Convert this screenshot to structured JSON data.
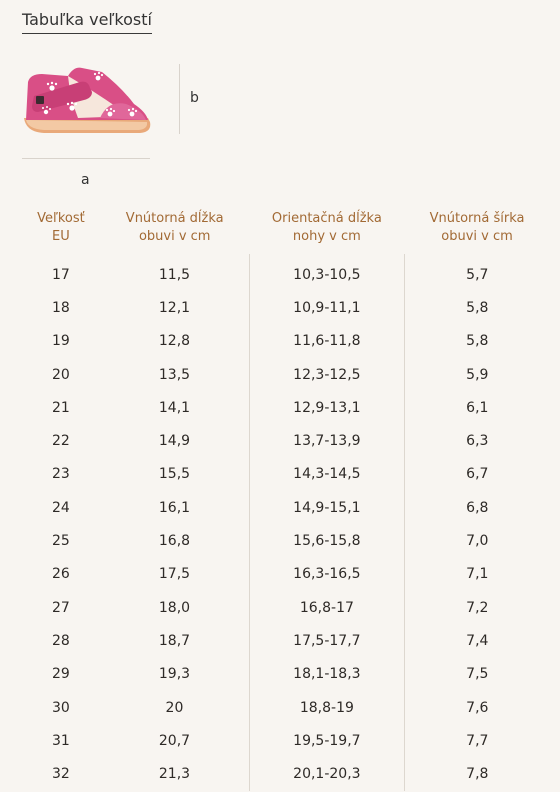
{
  "page": {
    "title": "Tabuľka veľkostí"
  },
  "figure": {
    "label_a": "a",
    "label_b": "b"
  },
  "table": {
    "headers": [
      "Veľkosť EU",
      "Vnútorná dĺžka obuvi v cm",
      "Orientačná dĺžka nohy v cm",
      "Vnútorná šírka obuvi v cm"
    ],
    "header_lines": [
      [
        "Veľkosť",
        "EU"
      ],
      [
        "Vnútorná dĺžka",
        "obuvi v cm"
      ],
      [
        "Orientačná dĺžka",
        "nohy v cm"
      ],
      [
        "Vnútorná šírka",
        "obuvi v cm"
      ]
    ],
    "rows": [
      [
        "17",
        "11,5",
        "10,3-10,5",
        "5,7"
      ],
      [
        "18",
        "12,1",
        "10,9-11,1",
        "5,8"
      ],
      [
        "19",
        "12,8",
        "11,6-11,8",
        "5,8"
      ],
      [
        "20",
        "13,5",
        "12,3-12,5",
        "5,9"
      ],
      [
        "21",
        "14,1",
        "12,9-13,1",
        "6,1"
      ],
      [
        "22",
        "14,9",
        "13,7-13,9",
        "6,3"
      ],
      [
        "23",
        "15,5",
        "14,3-14,5",
        "6,7"
      ],
      [
        "24",
        "16,1",
        "14,9-15,1",
        "6,8"
      ],
      [
        "25",
        "16,8",
        "15,6-15,8",
        "7,0"
      ],
      [
        "26",
        "17,5",
        "16,3-16,5",
        "7,1"
      ],
      [
        "27",
        "18,0",
        "16,8-17",
        "7,2"
      ],
      [
        "28",
        "18,7",
        "17,5-17,7",
        "7,4"
      ],
      [
        "29",
        "19,3",
        "18,1-18,3",
        "7,5"
      ],
      [
        "30",
        "20",
        "18,8-19",
        "7,6"
      ],
      [
        "31",
        "20,7",
        "19,5-19,7",
        "7,7"
      ],
      [
        "32",
        "21,3",
        "20,1-20,3",
        "7,8"
      ]
    ]
  },
  "colors": {
    "background": "#f8f5f1",
    "header_text": "#a26a35",
    "shoe_pink": "#d94f86",
    "shoe_sole": "#e8a878"
  }
}
